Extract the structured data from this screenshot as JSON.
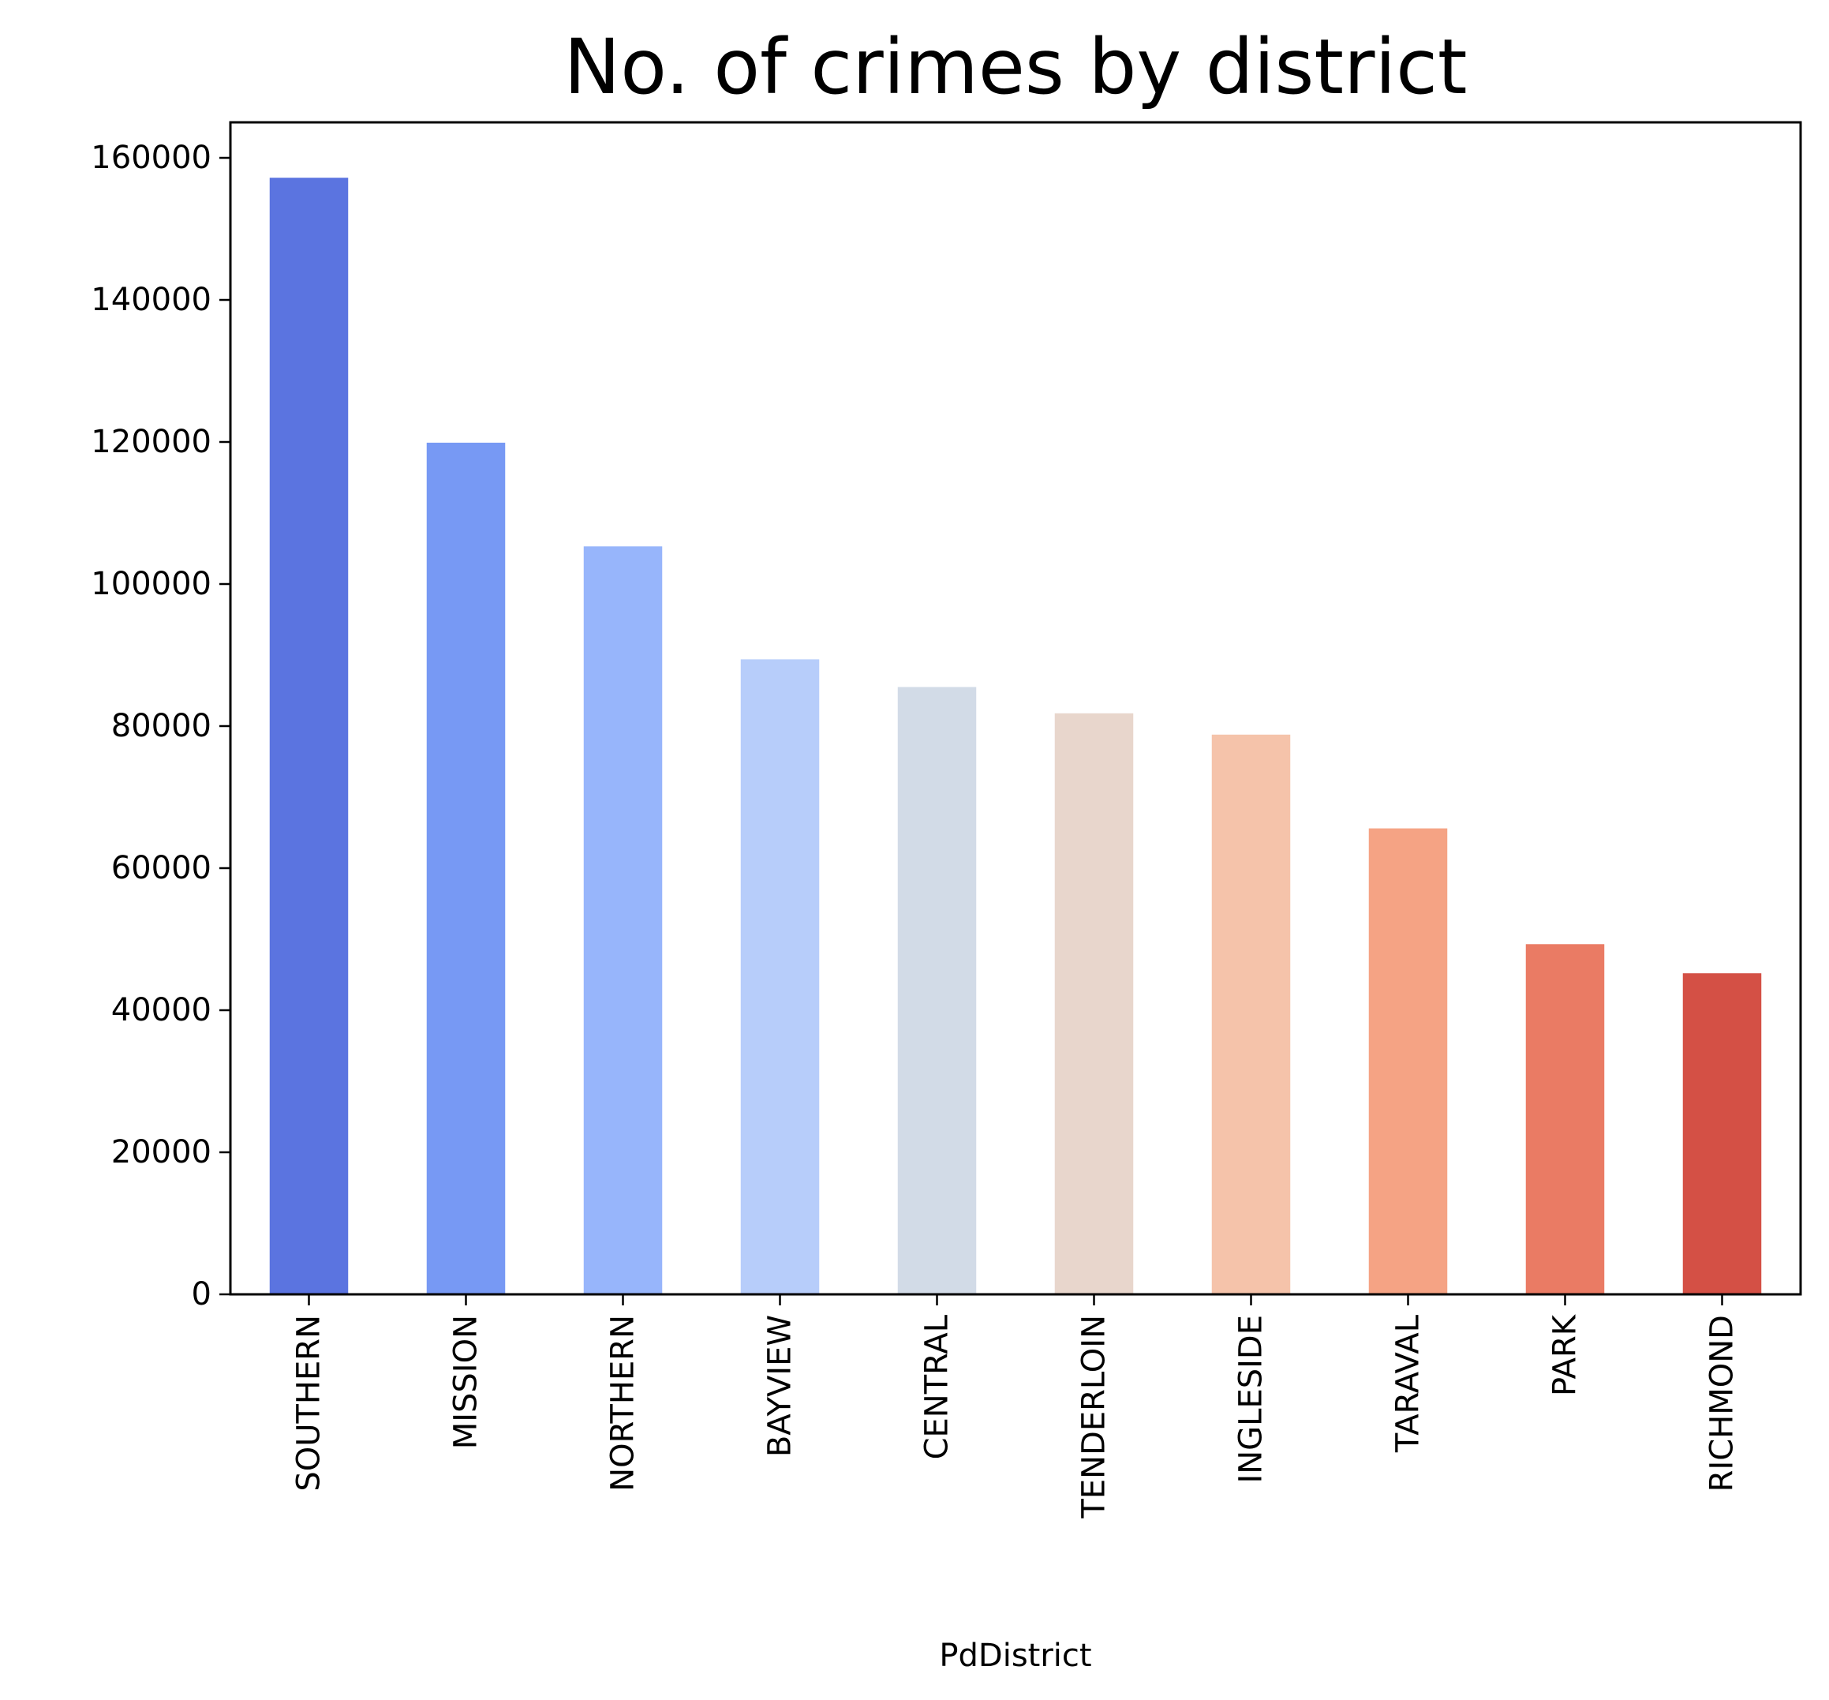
{
  "chart_data": {
    "type": "bar",
    "title": "No. of crimes by district",
    "xlabel": "PdDistrict",
    "ylabel": "",
    "categories": [
      "SOUTHERN",
      "MISSION",
      "NORTHERN",
      "BAYVIEW",
      "CENTRAL",
      "TENDERLOIN",
      "INGLESIDE",
      "TARAVAL",
      "PARK",
      "RICHMOND"
    ],
    "values": [
      157200,
      119900,
      105300,
      89400,
      85500,
      81800,
      78800,
      65600,
      49300,
      45200
    ],
    "colors": [
      "#5b74e0",
      "#7799f4",
      "#97b5fb",
      "#b7cdfa",
      "#d2dbe7",
      "#e8d6cc",
      "#f5c3aa",
      "#f5a384",
      "#ea7b64",
      "#d45045"
    ],
    "yticks": [
      0,
      20000,
      40000,
      60000,
      80000,
      100000,
      120000,
      140000,
      160000
    ],
    "ylim": [
      0,
      165000
    ],
    "grid": false,
    "legend": "none"
  }
}
